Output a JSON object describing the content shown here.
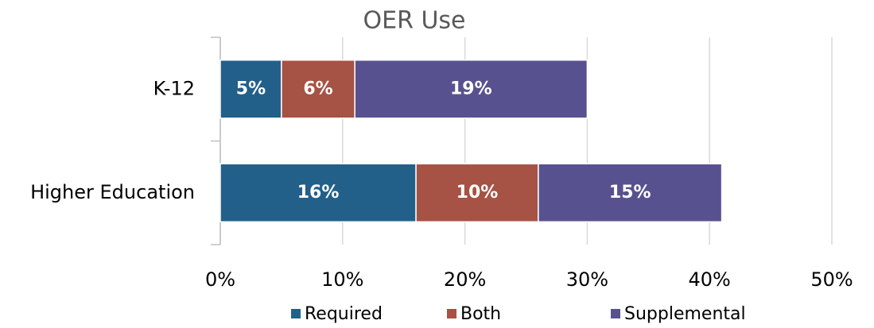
{
  "chart_data": {
    "type": "stacked-barh",
    "title": "OER Use",
    "categories": [
      "K-12",
      "Higher Education"
    ],
    "series": [
      {
        "name": "Required",
        "color": "#22608a",
        "values": [
          5,
          16
        ],
        "value_labels": [
          "5%",
          "16%"
        ]
      },
      {
        "name": "Both",
        "color": "#a65244",
        "values": [
          6,
          10
        ],
        "value_labels": [
          "6%",
          "10%"
        ]
      },
      {
        "name": "Supplemental",
        "color": "#57528f",
        "values": [
          19,
          15
        ],
        "value_labels": [
          "19%",
          "15%"
        ]
      }
    ],
    "xlim": [
      0,
      50
    ],
    "xticks": [
      {
        "value": 0,
        "label": "0%"
      },
      {
        "value": 10,
        "label": "10%"
      },
      {
        "value": 20,
        "label": "20%"
      },
      {
        "value": 30,
        "label": "30%"
      },
      {
        "value": 40,
        "label": "40%"
      },
      {
        "value": 50,
        "label": "50%"
      }
    ],
    "grid": true,
    "legend": "bottom"
  }
}
